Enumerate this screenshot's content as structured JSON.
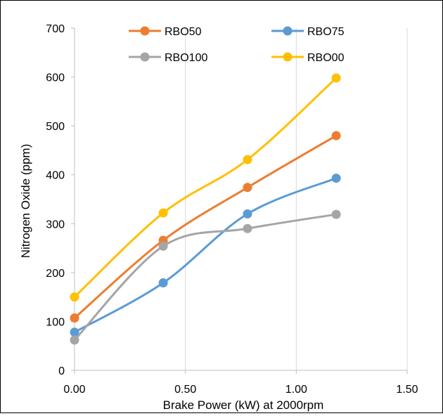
{
  "chart_data": {
    "type": "scatter",
    "xlabel": "Brake Power (kW) at 2000rpm",
    "ylabel": "Nitrogen Oxide (ppm)",
    "xlim": [
      0,
      1.5
    ],
    "ylim": [
      0,
      700
    ],
    "xticks": [
      "0.00",
      "0.50",
      "1.00",
      "1.50"
    ],
    "yticks": [
      "0",
      "100",
      "200",
      "300",
      "400",
      "500",
      "600",
      "700"
    ],
    "grid": "vertical",
    "legend_position": "top",
    "series": [
      {
        "name": "RBO50",
        "color": "#ED7D31",
        "x": [
          0,
          0.4,
          0.78,
          1.18
        ],
        "y": [
          107,
          266,
          374,
          480
        ]
      },
      {
        "name": "RBO75",
        "color": "#5B9BD5",
        "x": [
          0,
          0.4,
          0.78,
          1.18
        ],
        "y": [
          78,
          179,
          320,
          393
        ]
      },
      {
        "name": "RBO100",
        "color": "#A5A5A5",
        "x": [
          0,
          0.4,
          0.78,
          1.18
        ],
        "y": [
          62,
          254,
          290,
          319
        ]
      },
      {
        "name": "RBO00",
        "color": "#FFC000",
        "x": [
          0,
          0.4,
          0.78,
          1.18
        ],
        "y": [
          150,
          322,
          431,
          598
        ]
      }
    ]
  }
}
